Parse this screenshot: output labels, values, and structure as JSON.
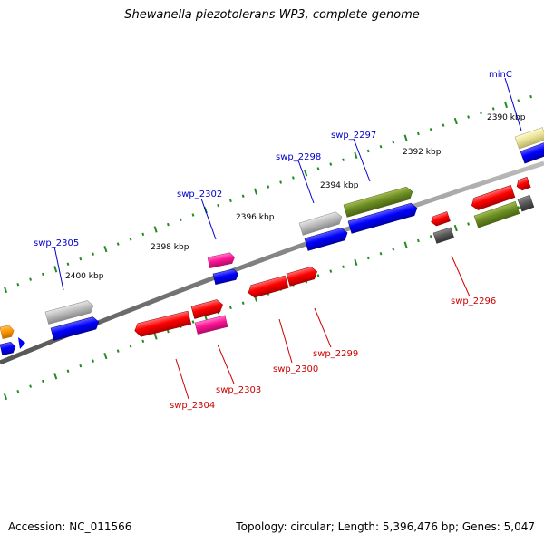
{
  "title": "Shewanella piezotolerans WP3, complete genome",
  "footer": {
    "accession": "Accession: NC_011566",
    "topology": "Topology: circular; Length: 5,396,476 bp; Genes: 5,047"
  },
  "ticks": [
    "2390 kbp",
    "2392 kbp",
    "2394 kbp",
    "2396 kbp",
    "2398 kbp",
    "2400 kbp"
  ],
  "gene_labels_plus": [
    "minC",
    "swp_2297",
    "swp_2298",
    "swp_2302",
    "swp_2305"
  ],
  "gene_labels_minus": [
    "swp_2296",
    "swp_2299",
    "swp_2300",
    "swp_2303",
    "swp_2304"
  ],
  "colors": {
    "label_plus": "#0000cc",
    "label_minus": "#cc0000",
    "tick_dots": "#228b22",
    "backbone": "#808080",
    "blue_track": "#0000ff",
    "red_track": "#ff0000"
  }
}
